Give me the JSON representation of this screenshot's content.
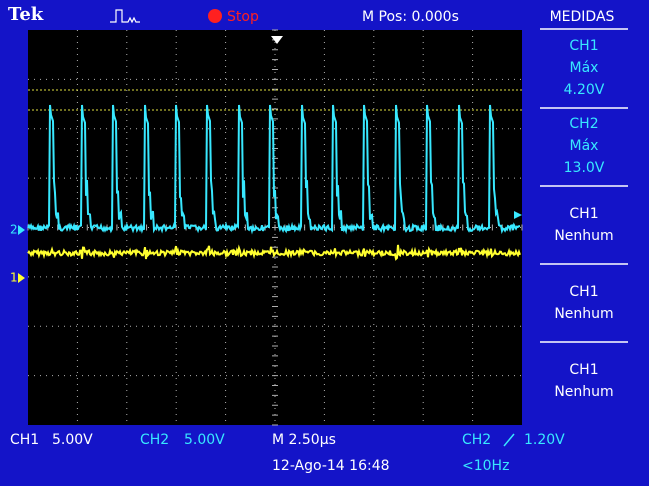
{
  "header": {
    "brand": "Tek",
    "status": "Stop",
    "position": "M Pos: 0.000s",
    "menu_title": "MEDIDAS"
  },
  "menu": [
    {
      "source": "CH1",
      "type": "Máx",
      "value": "4.20V"
    },
    {
      "source": "CH2",
      "type": "Máx",
      "value": "13.0V"
    },
    {
      "source": "CH1",
      "type": "Nenhum"
    },
    {
      "source": "CH1",
      "type": "Nenhum"
    },
    {
      "source": "CH1",
      "type": "Nenhum"
    }
  ],
  "markers": {
    "ch2": "2",
    "ch1": "1"
  },
  "footer": {
    "ch1_label": "CH1",
    "ch1_scale": "5.00V",
    "ch2_label": "CH2",
    "ch2_scale": "5.00V",
    "timebase": "M 2.50µs",
    "trigger_source": "CH2",
    "trigger_level": "1.20V",
    "date": "12-Ago-14 16:48",
    "frequency": "<10Hz"
  }
}
